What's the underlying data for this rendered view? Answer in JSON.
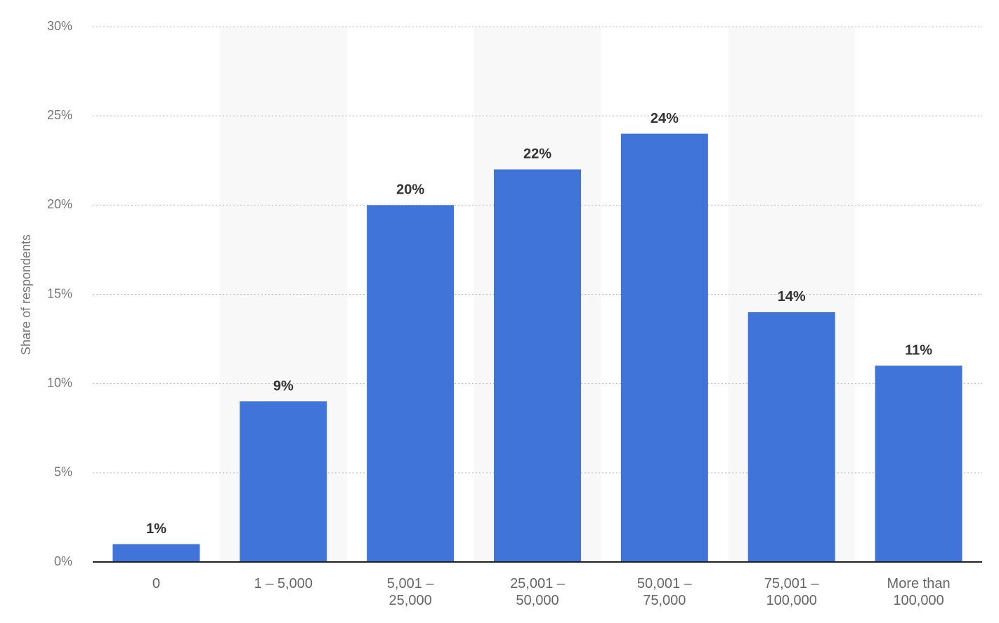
{
  "chart_data": {
    "type": "bar",
    "y_label": "Share of respondents",
    "categories": [
      "0",
      "1 – 5,000",
      "5,001 – 25,000",
      "25,001 – 50,000",
      "50,001 – 75,000",
      "75,001 – 100,000",
      "More than 100,000"
    ],
    "values": [
      1,
      9,
      20,
      22,
      24,
      14,
      11
    ],
    "value_labels": [
      "1%",
      "9%",
      "20%",
      "22%",
      "24%",
      "14%",
      "11%"
    ],
    "color": "#4074d8",
    "ylim": [
      0,
      30
    ],
    "yticks": [
      {
        "value": 0,
        "label": "0%"
      },
      {
        "value": 5,
        "label": "5%"
      },
      {
        "value": 10,
        "label": "10%"
      },
      {
        "value": 15,
        "label": "15%"
      },
      {
        "value": 20,
        "label": "20%"
      },
      {
        "value": 25,
        "label": "25%"
      },
      {
        "value": 30,
        "label": "30%"
      }
    ],
    "grid": true
  }
}
